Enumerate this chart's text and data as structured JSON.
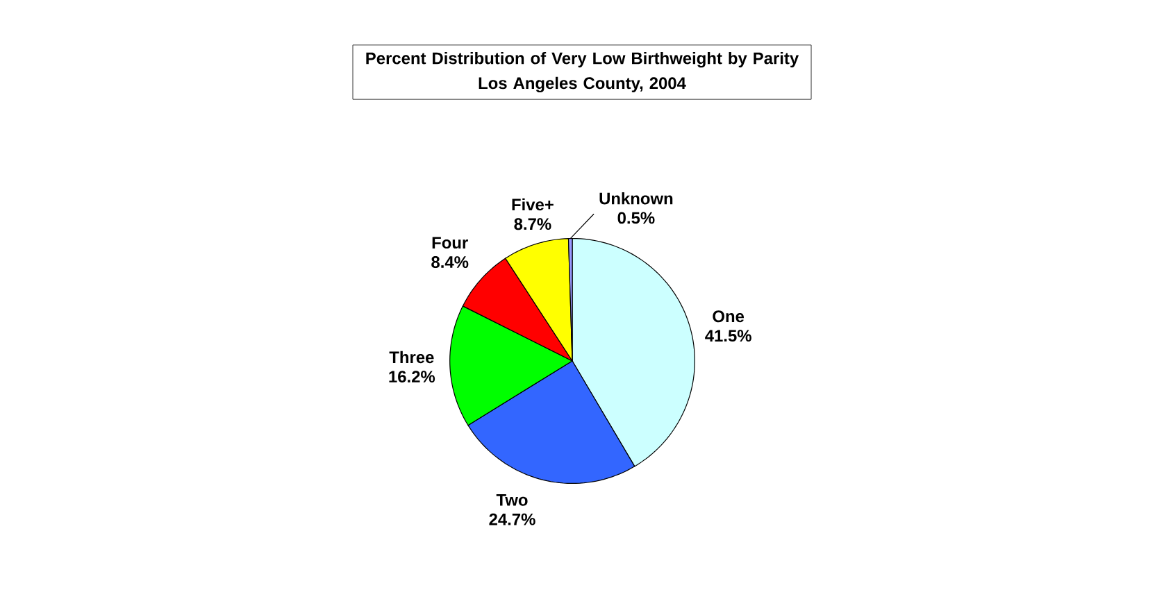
{
  "chart_data": {
    "type": "pie",
    "title": "Percent Distribution of Very Low Birthweight by Parity",
    "subtitle": "Los Angeles County, 2004",
    "categories": [
      "One",
      "Two",
      "Three",
      "Four",
      "Five+",
      "Unknown"
    ],
    "values": [
      41.5,
      24.7,
      16.2,
      8.4,
      8.7,
      0.5
    ],
    "value_labels": [
      "41.5%",
      "24.7%",
      "16.2%",
      "8.4%",
      "8.7%",
      "0.5%"
    ],
    "colors": [
      "#ccffff",
      "#3366ff",
      "#00ff00",
      "#ff0000",
      "#ffff00",
      "#9999ff"
    ]
  }
}
